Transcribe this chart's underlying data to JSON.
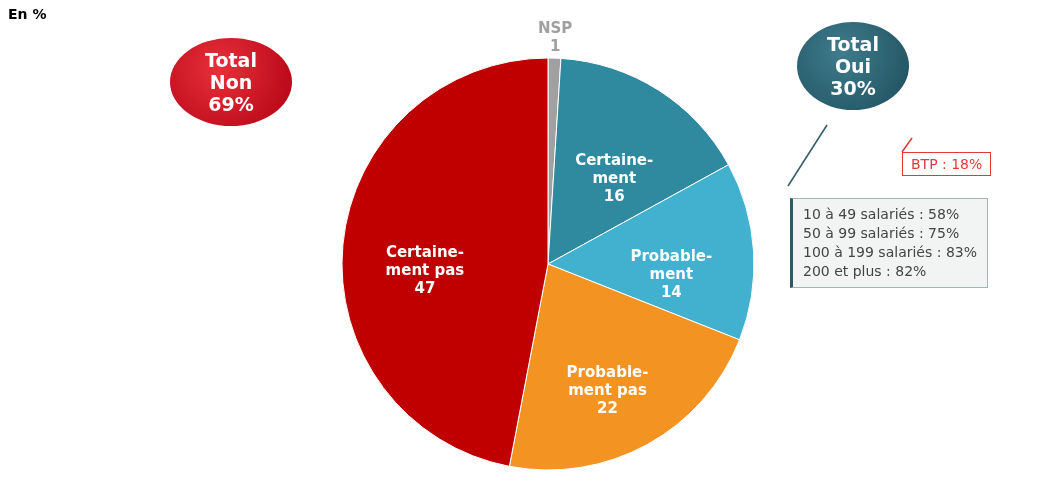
{
  "chart_data": {
    "type": "pie",
    "title": "En %",
    "categories": [
      "NSP",
      "Certaine-\nment",
      "Probable-\nment",
      "Probable-\nment pas",
      "Certaine-\nment pas"
    ],
    "values": [
      1,
      16,
      14,
      22,
      47
    ],
    "colors": [
      "#a0a0a0",
      "#2f8aa0",
      "#42b0cf",
      "#f39422",
      "#c00000"
    ],
    "data_labels": true,
    "annotations": [
      "Total\nNon\n69%",
      "Total\nOui\n30%",
      "BTP : 18%",
      "10 à 49 salariés : 58%\n50 à 99 salariés : 75%\n100 à 199 salariés : 83%\n200 et plus : 82%"
    ]
  }
}
